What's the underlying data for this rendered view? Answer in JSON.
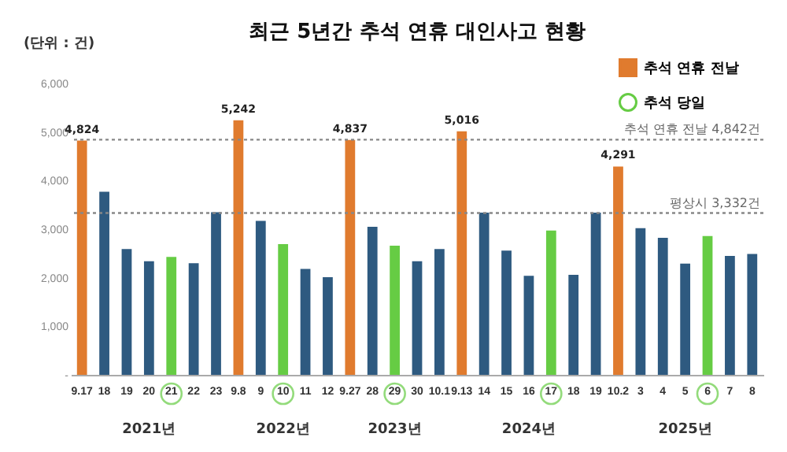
{
  "chart_data": {
    "type": "bar",
    "title": "최근 5년간 추석 연휴 대인사고 현황",
    "categories": [
      "9.17",
      "18",
      "19",
      "20",
      "21",
      "22",
      "23",
      "9.8",
      "9",
      "10",
      "11",
      "12",
      "9.27",
      "28",
      "29",
      "30",
      "10.1",
      "9.13",
      "14",
      "15",
      "16",
      "17",
      "18",
      "19",
      "10.2",
      "3",
      "4",
      "5",
      "6",
      "7",
      "8"
    ],
    "series": [
      {
        "name": "추석 연휴 전날",
        "color": "#e07b2e",
        "values": [
          4824,
          null,
          null,
          null,
          null,
          null,
          null,
          5242,
          null,
          null,
          null,
          null,
          4837,
          null,
          null,
          null,
          null,
          5016,
          null,
          null,
          null,
          null,
          null,
          null,
          4291,
          null,
          null,
          null,
          null,
          null,
          null
        ],
        "value_labels": [
          "4,824",
          null,
          null,
          null,
          null,
          null,
          null,
          "5,242",
          null,
          null,
          null,
          null,
          "4,837",
          null,
          null,
          null,
          null,
          "5,016",
          null,
          null,
          null,
          null,
          null,
          null,
          "4,291",
          null,
          null,
          null,
          null,
          null,
          null
        ]
      },
      {
        "name": "추석 당일",
        "color": "#66cc44",
        "marker": "circle",
        "values": [
          null,
          null,
          null,
          null,
          2430,
          null,
          null,
          null,
          null,
          2690,
          null,
          null,
          null,
          null,
          2660,
          null,
          null,
          null,
          null,
          null,
          null,
          2970,
          null,
          null,
          null,
          null,
          null,
          null,
          2860,
          null,
          null
        ]
      },
      {
        "color": "#2e5a80",
        "values": [
          null,
          3770,
          2590,
          2340,
          null,
          2300,
          3350,
          null,
          3170,
          null,
          2180,
          2010,
          null,
          3050,
          null,
          2340,
          2590,
          null,
          3340,
          2560,
          2040,
          null,
          2060,
          3340,
          null,
          3020,
          2820,
          2290,
          null,
          2450,
          2490
        ]
      }
    ],
    "ylim": [
      0,
      6000
    ],
    "yticks": [
      {
        "value": 0,
        "label": "-"
      },
      {
        "value": 1000,
        "label": "1,000"
      },
      {
        "value": 2000,
        "label": "2,000"
      },
      {
        "value": 3000,
        "label": "3,000"
      },
      {
        "value": 4000,
        "label": "4,000"
      },
      {
        "value": 5000,
        "label": "5,000"
      },
      {
        "value": 6000,
        "label": "6,000"
      }
    ],
    "ref_lines": [
      {
        "axis": "y",
        "value": 4842,
        "label": "추석 연휴 전날 4,842건",
        "line_style": "dotted",
        "color": "#888888"
      },
      {
        "axis": "y",
        "value": 3332,
        "label": "평상시 3,332건",
        "line_style": "dotted",
        "color": "#888888"
      }
    ],
    "legend": "top right",
    "annotations": [
      "(단위 : 건)",
      "2021년",
      "2022년",
      "2023년",
      "2024년",
      "2025년"
    ]
  }
}
